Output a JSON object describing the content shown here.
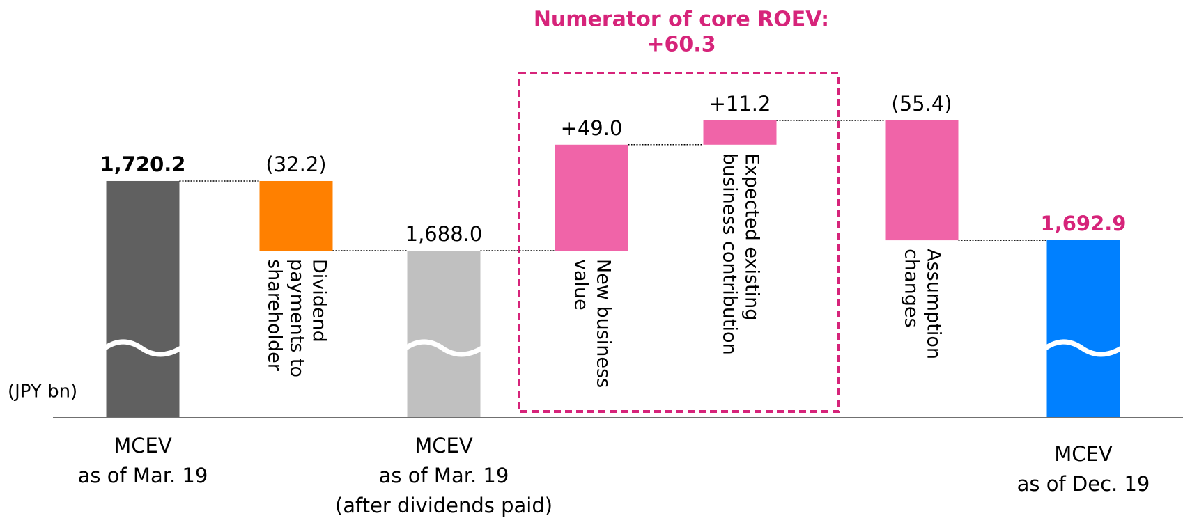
{
  "chart_data": {
    "type": "waterfall",
    "title": [
      "Numerator of core ROEV:",
      "+60.3"
    ],
    "unit_label": "(JPY bn)",
    "categories": [
      [
        "MCEV",
        "as of Mar. 19"
      ],
      [
        "Dividend",
        "payments to",
        "shareholder"
      ],
      [
        "MCEV",
        "as of Mar. 19",
        "(after dividends paid)"
      ],
      [
        "New business",
        "value"
      ],
      [
        "Expected existing",
        "business contribution"
      ],
      [
        "Assumption",
        "changes"
      ],
      [
        "MCEV",
        "as of Dec. 19"
      ]
    ],
    "values": [
      1720.2,
      -32.2,
      1688.0,
      49.0,
      11.2,
      -55.4,
      1692.9
    ],
    "value_labels": [
      "1,720.2",
      "(32.2)",
      "1,688.0",
      "+49.0",
      "+11.2",
      "(55.4)",
      "1,692.9"
    ],
    "totals": [
      true,
      false,
      true,
      false,
      false,
      false,
      true
    ],
    "colors": [
      "#606060",
      "#ff8000",
      "#c0c0c0",
      "#f064a8",
      "#f064a8",
      "#f064a8",
      "#0080ff"
    ],
    "label_colors": [
      "#000000",
      "#000000",
      "#000000",
      "#000000",
      "#000000",
      "#000000",
      "#d6247a"
    ],
    "title_color": "#d6247a"
  }
}
